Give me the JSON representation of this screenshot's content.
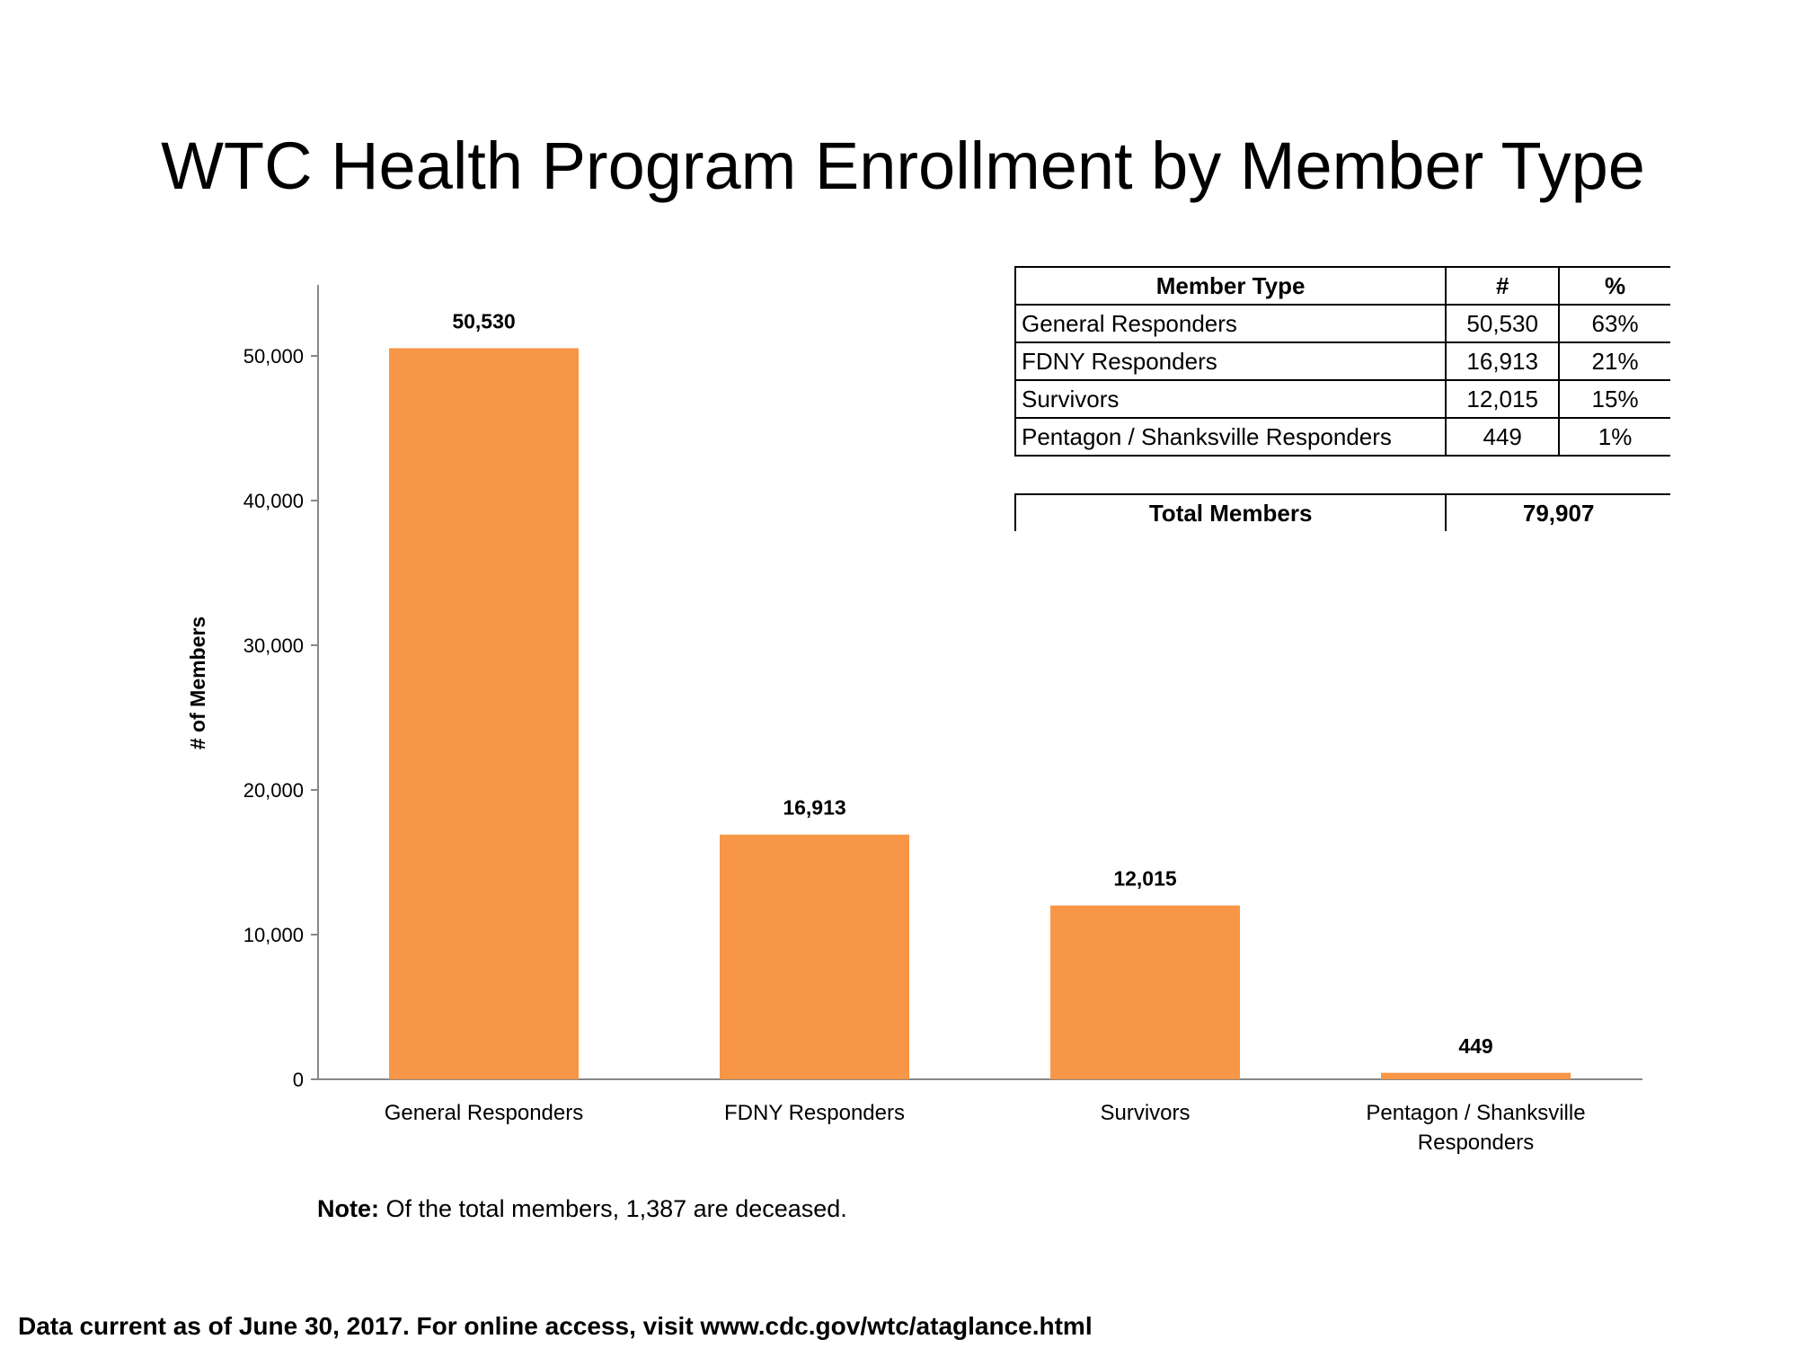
{
  "title": "WTC Health Program Enrollment by Member Type",
  "chart_data": {
    "type": "bar",
    "title": "WTC Health Program Enrollment by Member Type",
    "categories": [
      "General Responders",
      "FDNY Responders",
      "Survivors",
      "Pentagon / Shanksville Responders"
    ],
    "category_lines": [
      [
        "General Responders"
      ],
      [
        "FDNY Responders"
      ],
      [
        "Survivors"
      ],
      [
        "Pentagon / Shanksville",
        "Responders"
      ]
    ],
    "values": [
      50530,
      16913,
      12015,
      449
    ],
    "data_labels": [
      "50,530",
      "16,913",
      "12,015",
      "449"
    ],
    "xlabel": "",
    "ylabel": "# of Members",
    "ylim": [
      0,
      55000
    ],
    "yticks": [
      0,
      10000,
      20000,
      30000,
      40000,
      50000
    ],
    "ytick_labels": [
      "0",
      "10,000",
      "20,000",
      "30,000",
      "40,000",
      "50,000"
    ],
    "grid": false,
    "bar_color": "#F79646"
  },
  "table": {
    "headers": [
      "Member Type",
      "#",
      "%"
    ],
    "rows": [
      [
        "General Responders",
        "50,530",
        "63%"
      ],
      [
        "FDNY Responders",
        "16,913",
        "21%"
      ],
      [
        "Survivors",
        "12,015",
        "15%"
      ],
      [
        "Pentagon / Shanksville Responders",
        "449",
        "1%"
      ]
    ],
    "total_label": "Total Members",
    "total_value": "79,907"
  },
  "note": {
    "label": "Note:",
    "text": " Of the total members, 1,387 are deceased."
  },
  "footer": "Data current as of June 30, 2017. For online access, visit www.cdc.gov/wtc/ataglance.html"
}
